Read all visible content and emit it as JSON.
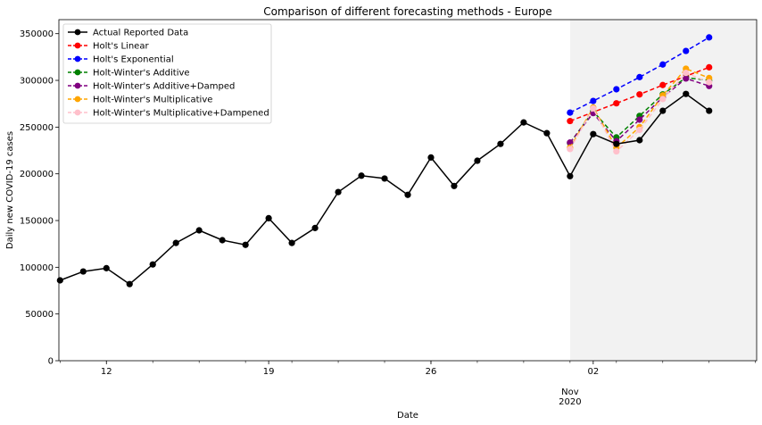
{
  "chart_data": {
    "type": "line",
    "title": "Comparison of different forecasting methods - Europe",
    "xlabel": "Date",
    "ylabel": "Daily new COVID-19 cases",
    "x_range": [
      "2020-10-10",
      "2020-11-08"
    ],
    "ylim": [
      0,
      365000
    ],
    "y_ticks": [
      0,
      50000,
      100000,
      150000,
      200000,
      250000,
      300000,
      350000
    ],
    "x_ticks": [
      {
        "date": "2020-10-12",
        "label": "12"
      },
      {
        "date": "2020-10-19",
        "label": "19"
      },
      {
        "date": "2020-10-26",
        "label": "26"
      },
      {
        "date": "2020-11-02",
        "label": "02"
      }
    ],
    "x_month_label": [
      "Nov",
      "2020"
    ],
    "forecast_region": [
      "2020-11-01",
      "2020-11-08"
    ],
    "forecast_region_color": "#f2f2f2",
    "legend_position": "top-left",
    "grid": false,
    "series": [
      {
        "name": "Actual Reported Data",
        "color": "#000000",
        "dashed": false,
        "x": [
          "2020-10-10",
          "2020-10-11",
          "2020-10-12",
          "2020-10-13",
          "2020-10-14",
          "2020-10-15",
          "2020-10-16",
          "2020-10-17",
          "2020-10-18",
          "2020-10-19",
          "2020-10-20",
          "2020-10-21",
          "2020-10-22",
          "2020-10-23",
          "2020-10-24",
          "2020-10-25",
          "2020-10-26",
          "2020-10-27",
          "2020-10-28",
          "2020-10-29",
          "2020-10-30",
          "2020-10-31",
          "2020-11-01",
          "2020-11-02",
          "2020-11-03",
          "2020-11-04",
          "2020-11-05",
          "2020-11-06",
          "2020-11-07"
        ],
        "values": [
          86000,
          95500,
          99000,
          82000,
          103000,
          126000,
          139500,
          129000,
          124000,
          152500,
          126000,
          142000,
          180500,
          198000,
          195000,
          177500,
          217500,
          187000,
          214000,
          232000,
          255000,
          243500,
          197500,
          242500,
          232000,
          236000,
          267500,
          285500,
          267500
        ]
      },
      {
        "name": "Holt's Linear",
        "color": "#ff0000",
        "dashed": true,
        "x": [
          "2020-11-01",
          "2020-11-02",
          "2020-11-03",
          "2020-11-04",
          "2020-11-05",
          "2020-11-06",
          "2020-11-07"
        ],
        "values": [
          256500,
          266000,
          275500,
          285000,
          295000,
          304500,
          314000
        ]
      },
      {
        "name": "Holt's Exponential",
        "color": "#0000ff",
        "dashed": true,
        "x": [
          "2020-11-01",
          "2020-11-02",
          "2020-11-03",
          "2020-11-04",
          "2020-11-05",
          "2020-11-06",
          "2020-11-07"
        ],
        "values": [
          265500,
          278000,
          290500,
          303500,
          317000,
          331500,
          346000
        ]
      },
      {
        "name": "Holt-Winter's Additive",
        "color": "#008000",
        "dashed": true,
        "x": [
          "2020-11-01",
          "2020-11-02",
          "2020-11-03",
          "2020-11-04",
          "2020-11-05",
          "2020-11-06",
          "2020-11-07"
        ],
        "values": [
          233000,
          267000,
          239000,
          262000,
          285000,
          303000,
          300000
        ]
      },
      {
        "name": "Holt-Winter's Additive+Damped",
        "color": "#800080",
        "dashed": true,
        "x": [
          "2020-11-01",
          "2020-11-02",
          "2020-11-03",
          "2020-11-04",
          "2020-11-05",
          "2020-11-06",
          "2020-11-07"
        ],
        "values": [
          233500,
          265000,
          235000,
          258000,
          282000,
          302000,
          294000
        ]
      },
      {
        "name": "Holt-Winter's Multiplicative",
        "color": "#ffa500",
        "dashed": true,
        "x": [
          "2020-11-01",
          "2020-11-02",
          "2020-11-03",
          "2020-11-04",
          "2020-11-05",
          "2020-11-06",
          "2020-11-07"
        ],
        "values": [
          228000,
          271000,
          228000,
          250000,
          284000,
          312500,
          302500
        ]
      },
      {
        "name": "Holt-Winter's Multiplicative+Dampened",
        "color": "#ffc0cb",
        "dashed": true,
        "x": [
          "2020-11-01",
          "2020-11-02",
          "2020-11-03",
          "2020-11-04",
          "2020-11-05",
          "2020-11-06",
          "2020-11-07"
        ],
        "values": [
          226500,
          270000,
          224000,
          247000,
          280000,
          308000,
          298000
        ]
      }
    ]
  }
}
